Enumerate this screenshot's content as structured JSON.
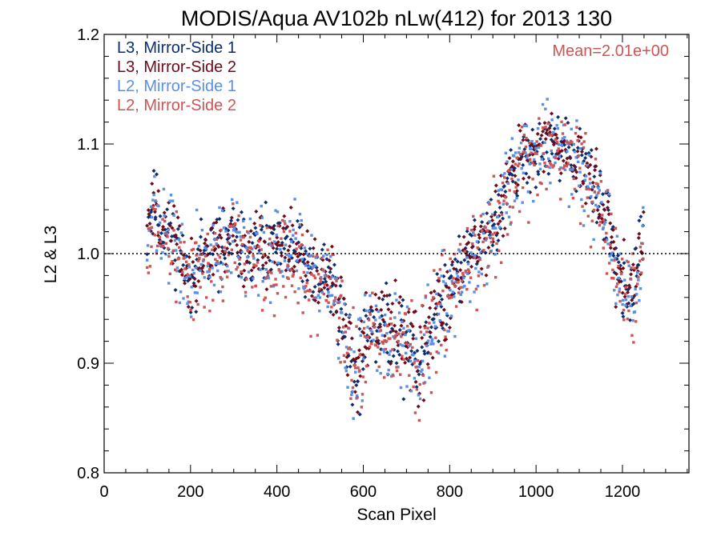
{
  "chart_data": {
    "type": "scatter",
    "title": "MODIS/Aqua AV102b nLw(412) for 2013 130",
    "xlabel": "Scan Pixel",
    "ylabel": "L2 & L3",
    "xlim": [
      0,
      1354
    ],
    "ylim": [
      0.8,
      1.2
    ],
    "x_ticks": [
      "0",
      "200",
      "400",
      "600",
      "800",
      "1000",
      "1200"
    ],
    "y_ticks": [
      "0.8",
      "0.9",
      "1.0",
      "1.1",
      "1.2"
    ],
    "reference_line": 1.0,
    "annotation": "Mean=2.01e+00",
    "annotation_color": "#cc5555",
    "legend_position": "top-left",
    "curve": [
      [
        100,
        1.025
      ],
      [
        115,
        1.045
      ],
      [
        125,
        1.035
      ],
      [
        140,
        1.015
      ],
      [
        155,
        1.02
      ],
      [
        170,
        1.005
      ],
      [
        185,
        0.99
      ],
      [
        200,
        0.975
      ],
      [
        210,
        0.985
      ],
      [
        230,
        1.0
      ],
      [
        250,
        1.0
      ],
      [
        270,
        1.005
      ],
      [
        290,
        1.015
      ],
      [
        310,
        1.01
      ],
      [
        330,
        1.0
      ],
      [
        350,
        1.005
      ],
      [
        370,
        1.0
      ],
      [
        390,
        1.005
      ],
      [
        410,
        1.0
      ],
      [
        430,
        1.005
      ],
      [
        450,
        1.0
      ],
      [
        470,
        0.985
      ],
      [
        490,
        0.98
      ],
      [
        510,
        0.985
      ],
      [
        530,
        0.97
      ],
      [
        550,
        0.94
      ],
      [
        570,
        0.905
      ],
      [
        585,
        0.885
      ],
      [
        600,
        0.91
      ],
      [
        615,
        0.935
      ],
      [
        630,
        0.94
      ],
      [
        650,
        0.935
      ],
      [
        670,
        0.93
      ],
      [
        690,
        0.925
      ],
      [
        710,
        0.915
      ],
      [
        730,
        0.9
      ],
      [
        750,
        0.93
      ],
      [
        770,
        0.945
      ],
      [
        790,
        0.96
      ],
      [
        810,
        0.98
      ],
      [
        830,
        0.99
      ],
      [
        850,
        1.0
      ],
      [
        870,
        1.005
      ],
      [
        890,
        1.015
      ],
      [
        910,
        1.03
      ],
      [
        930,
        1.06
      ],
      [
        950,
        1.075
      ],
      [
        970,
        1.08
      ],
      [
        990,
        1.09
      ],
      [
        1010,
        1.1
      ],
      [
        1030,
        1.1
      ],
      [
        1050,
        1.105
      ],
      [
        1070,
        1.095
      ],
      [
        1090,
        1.085
      ],
      [
        1110,
        1.075
      ],
      [
        1130,
        1.065
      ],
      [
        1150,
        1.05
      ],
      [
        1165,
        1.03
      ],
      [
        1180,
        1.0
      ],
      [
        1195,
        0.975
      ],
      [
        1210,
        0.965
      ],
      [
        1225,
        0.96
      ],
      [
        1240,
        1.0
      ],
      [
        1250,
        1.02
      ]
    ],
    "series": [
      {
        "name": "L3, Mirror-Side 1",
        "color": "#0b2e6e",
        "marker": "diamond",
        "offset": 0.0,
        "spread": 0.016,
        "seed": 11
      },
      {
        "name": "L3, Mirror-Side 2",
        "color": "#6e0a1a",
        "marker": "diamond",
        "offset": 0.002,
        "spread": 0.016,
        "seed": 23
      },
      {
        "name": "L2, Mirror-Side 1",
        "color": "#5b8fe6",
        "marker": "square",
        "offset": -0.004,
        "spread": 0.02,
        "seed": 37
      },
      {
        "name": "L2, Mirror-Side 2",
        "color": "#cc5555",
        "marker": "square",
        "offset": -0.008,
        "spread": 0.022,
        "seed": 53
      }
    ]
  }
}
